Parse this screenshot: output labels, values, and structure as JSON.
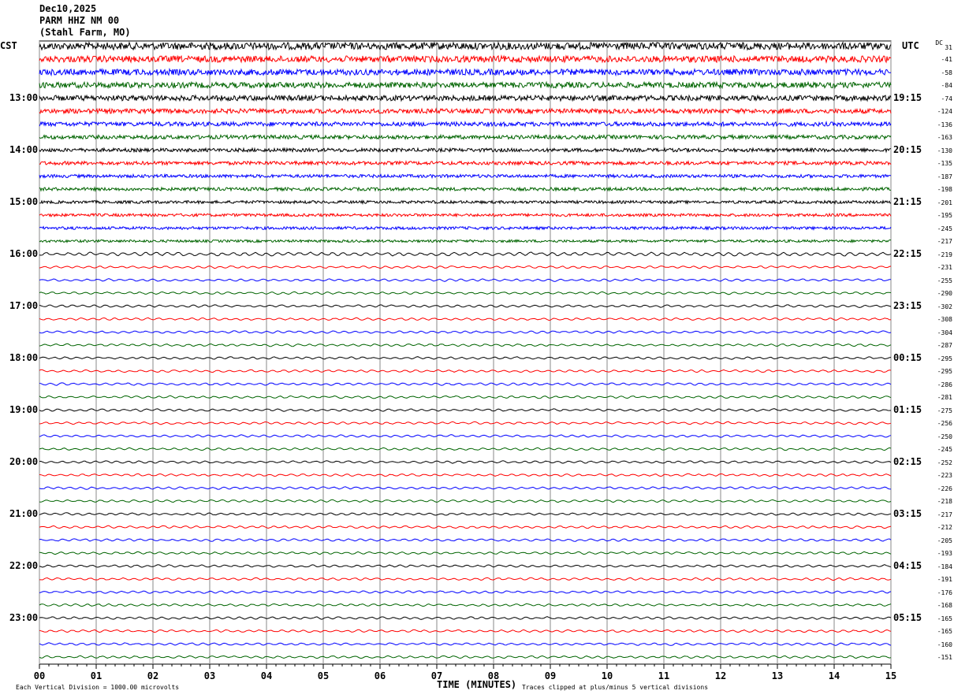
{
  "header": {
    "date": "Dec10,2025",
    "station": "PARM HHZ NM 00",
    "location": "(Stahl Farm, MO)"
  },
  "left_timezone": "CST",
  "right_timezone": "UTC",
  "dc_label": "DC",
  "footer": {
    "scale_note": "Each Vertical Division = 1000.00 microvolts",
    "x_axis_title": "TIME (MINUTES)",
    "clip_note": "Traces clipped at plus/minus 5 vertical divisions"
  },
  "chart_data": {
    "type": "line",
    "title": "",
    "xlabel": "TIME (MINUTES)",
    "x_ticks": [
      "00",
      "01",
      "02",
      "03",
      "04",
      "05",
      "06",
      "07",
      "08",
      "09",
      "10",
      "11",
      "12",
      "13",
      "14",
      "15"
    ],
    "xlim": [
      0,
      15
    ],
    "grid": true,
    "trace_colors": [
      "#000000",
      "#ff0000",
      "#0000ff",
      "#006400"
    ],
    "left_hour_labels": [
      {
        "row": 0,
        "label": "CST"
      },
      {
        "row": 4,
        "label": "13:00"
      },
      {
        "row": 8,
        "label": "14:00"
      },
      {
        "row": 12,
        "label": "15:00"
      },
      {
        "row": 16,
        "label": "16:00"
      },
      {
        "row": 20,
        "label": "17:00"
      },
      {
        "row": 24,
        "label": "18:00"
      },
      {
        "row": 28,
        "label": "19:00"
      },
      {
        "row": 32,
        "label": "20:00"
      },
      {
        "row": 36,
        "label": "21:00"
      },
      {
        "row": 40,
        "label": "22:00"
      },
      {
        "row": 44,
        "label": "23:00"
      }
    ],
    "right_hour_labels": [
      {
        "row": 0,
        "label": "UTC"
      },
      {
        "row": 4,
        "label": "19:15"
      },
      {
        "row": 8,
        "label": "20:15"
      },
      {
        "row": 12,
        "label": "21:15"
      },
      {
        "row": 16,
        "label": "22:15"
      },
      {
        "row": 20,
        "label": "23:15"
      },
      {
        "row": 24,
        "label": "00:15"
      },
      {
        "row": 28,
        "label": "01:15"
      },
      {
        "row": 32,
        "label": "02:15"
      },
      {
        "row": 36,
        "label": "03:15"
      },
      {
        "row": 40,
        "label": "04:15"
      },
      {
        "row": 44,
        "label": "05:15"
      }
    ],
    "dc_offsets": [
      "31",
      "-41",
      "-58",
      "-84",
      "-74",
      "-124",
      "-136",
      "-163",
      "-130",
      "-135",
      "-187",
      "-198",
      "-201",
      "-195",
      "-245",
      "-217",
      "-219",
      "-231",
      "-255",
      "-290",
      "-302",
      "-308",
      "-304",
      "-287",
      "-295",
      "-295",
      "-286",
      "-281",
      "-275",
      "-256",
      "-250",
      "-245",
      "-252",
      "-223",
      "-226",
      "-218",
      "-217",
      "-212",
      "-205",
      "-193",
      "-184",
      "-191",
      "-176",
      "-168",
      "-165",
      "-165",
      "-160",
      "-151"
    ],
    "relative_noise_level": [
      1.0,
      0.9,
      0.85,
      0.8,
      0.75,
      0.65,
      0.6,
      0.55,
      0.5,
      0.5,
      0.45,
      0.45,
      0.4,
      0.4,
      0.4,
      0.35,
      0.3,
      0.2,
      0.2,
      0.2,
      0.2,
      0.2,
      0.2,
      0.2,
      0.2,
      0.2,
      0.2,
      0.2,
      0.2,
      0.2,
      0.2,
      0.2,
      0.2,
      0.2,
      0.2,
      0.2,
      0.2,
      0.2,
      0.2,
      0.2,
      0.2,
      0.2,
      0.2,
      0.2,
      0.2,
      0.2,
      0.2,
      0.2
    ]
  }
}
